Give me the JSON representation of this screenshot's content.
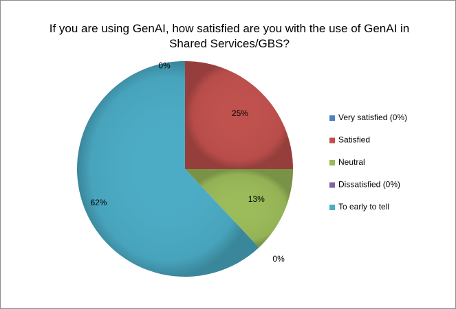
{
  "chart_data": {
    "type": "pie",
    "title": "If you are using GenAI, how satisfied are you with the use of GenAI in Shared Services/GBS?",
    "slices": [
      {
        "label": "Very satisfied (0%)",
        "value": 0,
        "display": "0%",
        "color": "#4f81bd"
      },
      {
        "label": "Satisfied",
        "value": 25,
        "display": "25%",
        "color": "#c0504d"
      },
      {
        "label": "Neutral",
        "value": 13,
        "display": "13%",
        "color": "#9bbb59"
      },
      {
        "label": "Dissatisfied (0%)",
        "value": 0,
        "display": "0%",
        "color": "#8064a2"
      },
      {
        "label": "To early to tell",
        "value": 62,
        "display": "62%",
        "color": "#4bacc6"
      }
    ],
    "legend_position": "right",
    "start_angle_deg": 0,
    "direction": "clockwise"
  }
}
